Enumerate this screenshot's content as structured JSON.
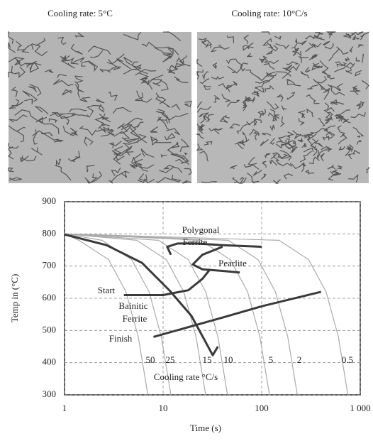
{
  "micrographs": [
    {
      "caption": "Cooling rate: 5°C"
    },
    {
      "caption": "Cooling rate: 10°C/s"
    }
  ],
  "chart_data": {
    "type": "line",
    "x_label": "Time (s)",
    "y_label": "Temp in (°C)",
    "log_x": true,
    "grid": true,
    "xlim": [
      1,
      1000
    ],
    "xticks": [
      1,
      10,
      100,
      {
        "value": 1000,
        "label": "1 000"
      }
    ],
    "ylim": [
      300,
      900
    ],
    "yticks": [
      300,
      400,
      500,
      600,
      700,
      800,
      900
    ],
    "annotations": [
      "Polygonal",
      "Ferrite",
      "Pearlite",
      "Start",
      "Bainitic",
      "Ferrite",
      "Finish",
      "Cooling rate °C/s"
    ],
    "cooling_curves": [
      {
        "rate": 50,
        "color": "#aaaaaa",
        "x": [
          1,
          1.4,
          2.8,
          4.2,
          5.6,
          7
        ],
        "y": [
          800,
          780,
          720,
          620,
          480,
          300
        ]
      },
      {
        "rate": 25,
        "color": "#aaaaaa",
        "x": [
          1,
          2.4,
          4.8,
          7.2,
          9.6,
          12
        ],
        "y": [
          800,
          780,
          720,
          620,
          480,
          300
        ]
      },
      {
        "rate": 15,
        "color": "#aaaaaa",
        "x": [
          1,
          5.4,
          10.8,
          16.2,
          21.6,
          27
        ],
        "y": [
          800,
          780,
          720,
          620,
          480,
          300
        ]
      },
      {
        "rate": 10,
        "color": "#aaaaaa",
        "x": [
          1,
          9,
          18,
          27,
          36,
          45
        ],
        "y": [
          800,
          780,
          720,
          620,
          480,
          300
        ]
      },
      {
        "rate": 5,
        "color": "#aaaaaa",
        "x": [
          1,
          24,
          48,
          72,
          96,
          120
        ],
        "y": [
          800,
          780,
          720,
          620,
          480,
          300
        ]
      },
      {
        "rate": 2,
        "color": "#aaaaaa",
        "x": [
          1,
          46,
          92,
          138,
          184,
          230
        ],
        "y": [
          800,
          780,
          720,
          620,
          480,
          300
        ]
      },
      {
        "rate": 0.5,
        "color": "#aaaaaa",
        "x": [
          1,
          150,
          300,
          450,
          600,
          750
        ],
        "y": [
          800,
          780,
          720,
          620,
          480,
          300
        ]
      }
    ],
    "series": [
      {
        "color": "#3a3a3a",
        "x": [
          1,
          2.66,
          6.1,
          11.8,
          19.4,
          31.9,
          36
        ],
        "y": [
          798,
          765,
          710,
          622,
          545,
          423,
          450
        ]
      },
      {
        "color": "#3a3a3a",
        "x": [
          12,
          11,
          14,
          22,
          40,
          100
        ],
        "y": [
          735,
          760,
          770,
          770,
          765,
          760
        ]
      },
      {
        "color": "#3a3a3a",
        "x": [
          40,
          25,
          20,
          25,
          40,
          60
        ],
        "y": [
          760,
          735,
          705,
          690,
          685,
          680
        ]
      },
      {
        "color": "#3a3a3a",
        "x": [
          4,
          10,
          18,
          25,
          30
        ],
        "y": [
          610,
          610,
          625,
          660,
          690
        ]
      },
      {
        "color": "#3a3a3a",
        "x": [
          8,
          40,
          100,
          400
        ],
        "y": [
          480,
          540,
          575,
          620
        ]
      }
    ]
  }
}
